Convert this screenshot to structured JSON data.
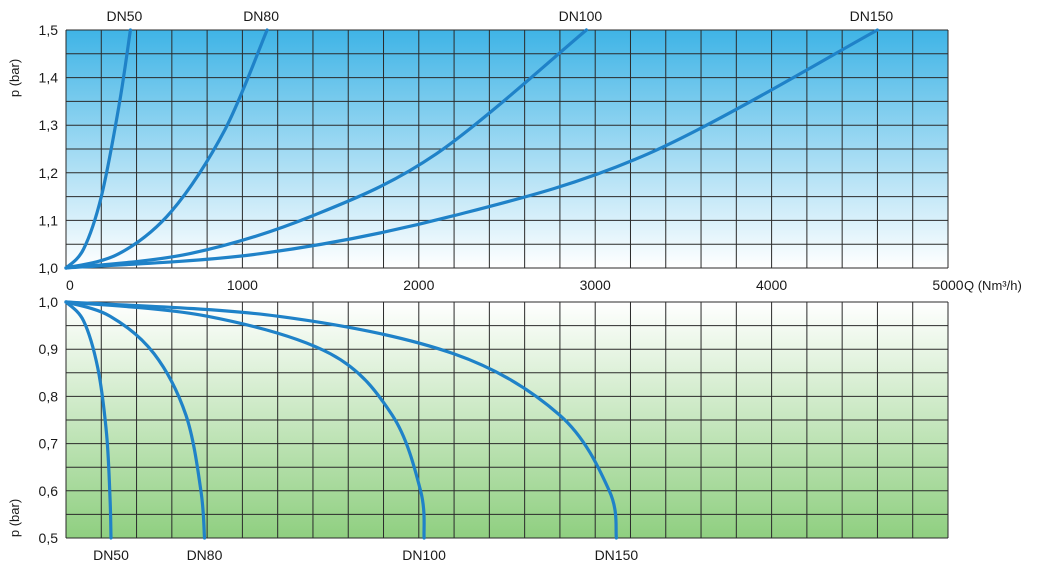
{
  "chart_data": [
    {
      "type": "line",
      "panel": "top",
      "ylabel": "p (bar)",
      "xlabel": "Q (Nm³/h)",
      "xlim": [
        0,
        5000
      ],
      "ylim": [
        1.0,
        1.5
      ],
      "x_ticks": [
        0,
        1000,
        2000,
        3000,
        4000,
        5000
      ],
      "x_tick_labels": [
        "0",
        "1000",
        "2000",
        "3000",
        "4000",
        "5000"
      ],
      "y_ticks": [
        1.0,
        1.1,
        1.2,
        1.3,
        1.4,
        1.5
      ],
      "y_tick_labels": [
        "1,0",
        "1,1",
        "1,2",
        "1,3",
        "1,4",
        "1,5"
      ],
      "grid": true,
      "background_gradient": [
        "#3fb4e6",
        "#ffffff"
      ],
      "line_color": "#1f82c8",
      "series": [
        {
          "name": "DN50",
          "x": [
            0,
            100,
            200,
            300,
            365
          ],
          "y": [
            1.0,
            1.04,
            1.15,
            1.34,
            1.5
          ]
        },
        {
          "name": "DN80",
          "x": [
            0,
            300,
            600,
            900,
            1140
          ],
          "y": [
            1.0,
            1.03,
            1.12,
            1.29,
            1.5
          ]
        },
        {
          "name": "DN100",
          "x": [
            0,
            700,
            1400,
            2100,
            2950
          ],
          "y": [
            1.0,
            1.03,
            1.11,
            1.24,
            1.5
          ]
        },
        {
          "name": "DN150",
          "x": [
            0,
            1100,
            2200,
            3300,
            4600
          ],
          "y": [
            1.0,
            1.03,
            1.11,
            1.24,
            1.5
          ]
        }
      ]
    },
    {
      "type": "line",
      "panel": "bottom",
      "ylabel": "p (bar)",
      "xlim": [
        0,
        5000
      ],
      "ylim": [
        0.5,
        1.0
      ],
      "y_ticks": [
        0.5,
        0.6,
        0.7,
        0.8,
        0.9,
        1.0
      ],
      "y_tick_labels": [
        "0,5",
        "0,6",
        "0,7",
        "0,8",
        "0,9",
        "1,0"
      ],
      "grid": true,
      "background_gradient": [
        "#ffffff",
        "#8fcf80"
      ],
      "line_color": "#1f82c8",
      "series": [
        {
          "name": "DN50",
          "x": [
            0,
            100,
            180,
            230,
            250,
            255
          ],
          "y": [
            1.0,
            0.96,
            0.86,
            0.72,
            0.58,
            0.5
          ]
        },
        {
          "name": "DN80",
          "x": [
            0,
            250,
            500,
            680,
            765,
            785
          ],
          "y": [
            1.0,
            0.97,
            0.89,
            0.76,
            0.6,
            0.5
          ]
        },
        {
          "name": "DN100",
          "x": [
            0,
            800,
            1500,
            1850,
            2010,
            2030
          ],
          "y": [
            1.0,
            0.97,
            0.89,
            0.76,
            0.6,
            0.5
          ]
        },
        {
          "name": "DN150",
          "x": [
            0,
            1200,
            2200,
            2800,
            3080,
            3120
          ],
          "y": [
            1.0,
            0.97,
            0.89,
            0.76,
            0.6,
            0.5
          ]
        }
      ]
    }
  ]
}
